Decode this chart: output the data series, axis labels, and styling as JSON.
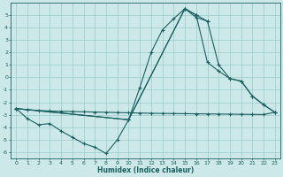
{
  "xlabel": "Humidex (Indice chaleur)",
  "background_color": "#cce8e8",
  "grid_color": "#99cccc",
  "line_color": "#1a6060",
  "xlim": [
    -0.5,
    23.5
  ],
  "ylim": [
    -6.5,
    6.0
  ],
  "line1_x": [
    0,
    1,
    2,
    3,
    4,
    5,
    6,
    7,
    8,
    9,
    10,
    11,
    12,
    13,
    14,
    15,
    16,
    17
  ],
  "line1_y": [
    -2.5,
    -3.3,
    -3.8,
    -3.7,
    -4.3,
    -4.8,
    -5.3,
    -5.6,
    -6.1,
    -5.0,
    -3.4,
    -0.8,
    2.0,
    3.8,
    4.7,
    5.5,
    5.0,
    4.5
  ],
  "line2_x": [
    0,
    1,
    2,
    3,
    4,
    5,
    6,
    7,
    8,
    9,
    10,
    11,
    12,
    13,
    14,
    15,
    16,
    17,
    18,
    19,
    20,
    21,
    22,
    23
  ],
  "line2_y": [
    -2.5,
    -2.6,
    -2.65,
    -2.7,
    -2.72,
    -2.74,
    -2.76,
    -2.78,
    -2.8,
    -2.82,
    -2.84,
    -2.86,
    -2.88,
    -2.89,
    -2.9,
    -2.91,
    -2.92,
    -2.93,
    -2.94,
    -2.95,
    -2.96,
    -2.97,
    -2.98,
    -2.8
  ],
  "line3_x": [
    0,
    10,
    15,
    16,
    17,
    18,
    19,
    20,
    21,
    22,
    23
  ],
  "line3_y": [
    -2.5,
    -3.4,
    5.5,
    5.0,
    1.2,
    0.5,
    -0.1,
    -0.3,
    -1.5,
    -2.2,
    -2.8
  ],
  "line4_x": [
    0,
    10,
    15,
    16,
    17,
    18,
    19,
    20,
    21,
    22,
    23
  ],
  "line4_y": [
    -2.5,
    -3.4,
    5.5,
    4.8,
    4.5,
    1.0,
    -0.1,
    -0.3,
    -1.5,
    -2.2,
    -2.8
  ],
  "yticks": [
    -6,
    -5,
    -4,
    -3,
    -2,
    -1,
    0,
    1,
    2,
    3,
    4,
    5
  ],
  "xticks": [
    0,
    1,
    2,
    3,
    4,
    5,
    6,
    7,
    8,
    9,
    10,
    11,
    12,
    13,
    14,
    15,
    16,
    17,
    18,
    19,
    20,
    21,
    22,
    23
  ]
}
